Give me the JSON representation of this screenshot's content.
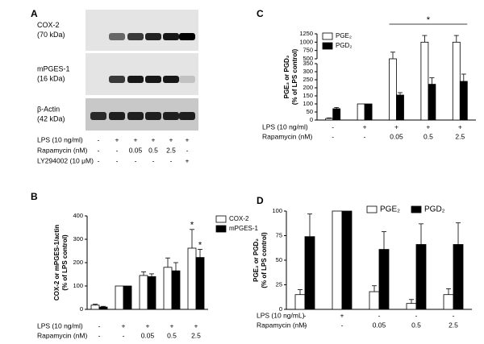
{
  "blot": {
    "label": "A",
    "rows": [
      {
        "name": "COX-2",
        "size": "(70 kDa)"
      },
      {
        "name": "mPGES-1",
        "size": "(16 kDa)"
      },
      {
        "name": "β-Actin",
        "size": "(42 kDa)"
      }
    ],
    "conditions": [
      {
        "name": "LPS (10 ng/ml)",
        "values": [
          "-",
          "+",
          "+",
          "+",
          "+",
          "+"
        ]
      },
      {
        "name": "Rapamycin (nM)",
        "values": [
          "-",
          "-",
          "0.05",
          "0.5",
          "2.5",
          "-"
        ]
      },
      {
        "name": "LY294002 (10 μM)",
        "values": [
          "-",
          "-",
          "-",
          "-",
          "-",
          "+"
        ]
      }
    ]
  },
  "chart_data": [
    {
      "type": "bar",
      "label": "B",
      "ylabel": [
        "COX-2 or mPGES-1/actin",
        "(% of LPS control)"
      ],
      "conditions": [
        {
          "name": "LPS (10 ng/ml)",
          "values": [
            "-",
            "+",
            "+",
            "+",
            "+"
          ]
        },
        {
          "name": "Rapamycin (nM)",
          "values": [
            "-",
            "-",
            "0.05",
            "0.5",
            "2.5"
          ]
        }
      ],
      "series": [
        {
          "name": "COX-2",
          "color": "#ffffff",
          "values": [
            18,
            100,
            145,
            180,
            262
          ],
          "errors": [
            4,
            0,
            15,
            40,
            80
          ]
        },
        {
          "name": "mPGES-1",
          "color": "#000000",
          "values": [
            10,
            100,
            140,
            165,
            222
          ],
          "errors": [
            3,
            0,
            12,
            35,
            35
          ]
        }
      ],
      "ylim": [
        0,
        400
      ],
      "yticks": [
        0,
        100,
        200,
        300,
        400
      ],
      "annotations": [
        "*",
        "*"
      ]
    },
    {
      "type": "bar",
      "label": "C",
      "ylabel": [
        "PGE₂ or PGD₂",
        "(% of LPS control)"
      ],
      "conditions": [
        {
          "name": "LPS (10 ng/ml)",
          "values": [
            "-",
            "+",
            "+",
            "+",
            "+"
          ]
        },
        {
          "name": "Rapamycin (nM)",
          "values": [
            "-",
            "-",
            "0.05",
            "0.5",
            "2.5"
          ]
        }
      ],
      "series": [
        {
          "name": "PGE₂",
          "color": "#ffffff",
          "values": [
            10,
            100,
            500,
            1000,
            1000
          ],
          "errors": [
            3,
            0,
            200,
            200,
            200
          ]
        },
        {
          "name": "PGD₂",
          "color": "#000000",
          "values": [
            70,
            100,
            155,
            222,
            240
          ],
          "errors": [
            8,
            0,
            15,
            40,
            45
          ]
        }
      ],
      "ylim": [
        0,
        1250
      ],
      "ybreak": [
        350,
        500
      ],
      "yticks": [
        0,
        50,
        100,
        150,
        200,
        250,
        300,
        350,
        500,
        750,
        1000,
        1250
      ],
      "annotations": [
        "*"
      ]
    },
    {
      "type": "bar",
      "label": "D",
      "ylabel": [
        "PGE₂ or PGD₂",
        "(% of LPS control)"
      ],
      "conditions": [
        {
          "name": "LPS (10 ng/mL)",
          "values": [
            "-",
            "+",
            "-",
            "-",
            "-"
          ]
        },
        {
          "name": "Rapamycin (nM)",
          "values": [
            "-",
            "-",
            "0.05",
            "0.5",
            "2.5"
          ]
        }
      ],
      "series": [
        {
          "name": "PGE₂",
          "color": "#ffffff",
          "values": [
            15,
            100,
            18,
            6,
            15
          ],
          "errors": [
            5,
            0,
            6,
            4,
            6
          ]
        },
        {
          "name": "PGD₂",
          "color": "#000000",
          "values": [
            74,
            100,
            61,
            66,
            66
          ],
          "errors": [
            23,
            0,
            18,
            21,
            22
          ]
        }
      ],
      "ylim": [
        0,
        100
      ],
      "yticks": [
        0,
        25,
        50,
        75,
        100
      ]
    }
  ]
}
